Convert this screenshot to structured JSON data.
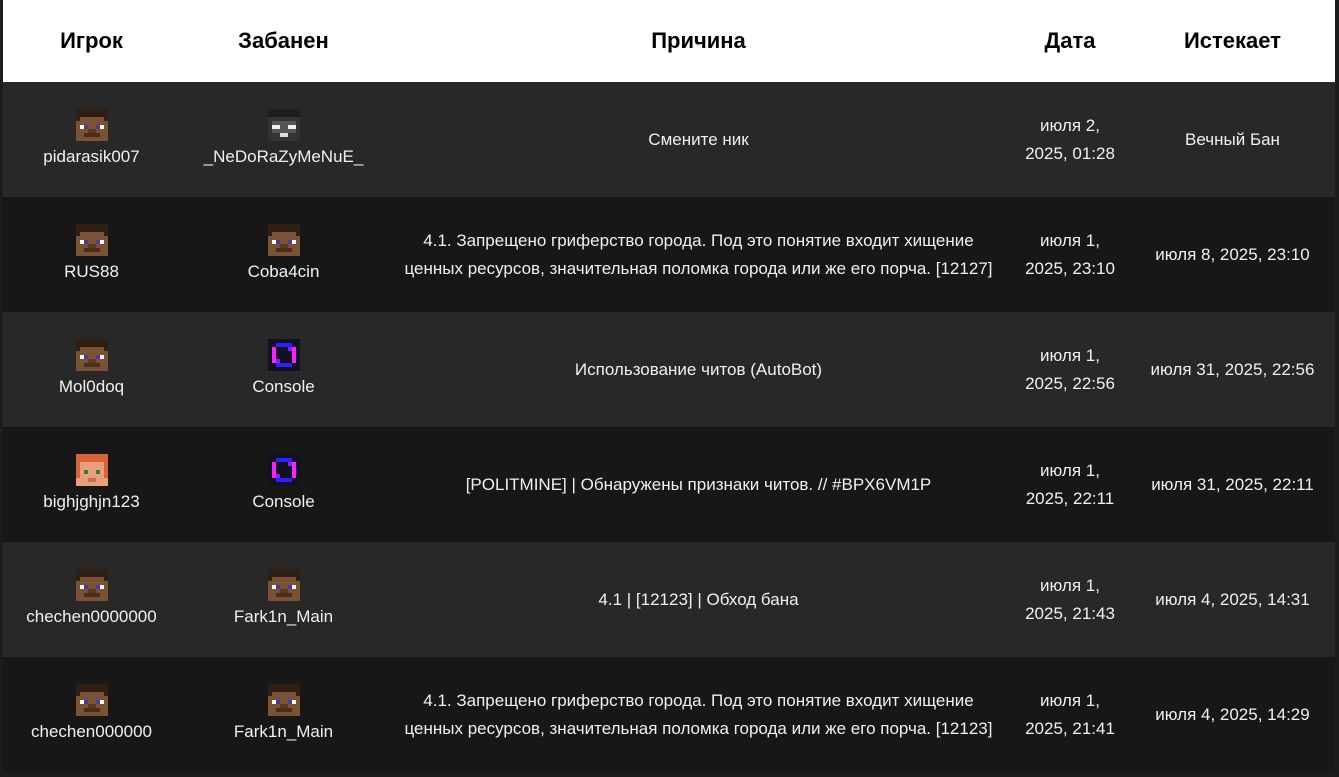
{
  "headers": {
    "player": "Игрок",
    "banned_by": "Забанен",
    "reason": "Причина",
    "date": "Дата",
    "expires": "Истекает"
  },
  "rows": [
    {
      "player": "pidarasik007",
      "player_avatar": "steve",
      "banned_by": "_NeDoRaZyMeNuE_",
      "banned_by_avatar": "gray",
      "reason": "Смените ник",
      "date": "июля 2, 2025, 01:28",
      "expires": "Вечный Бан"
    },
    {
      "player": "RUS88",
      "player_avatar": "steve",
      "banned_by": "Coba4cin",
      "banned_by_avatar": "steve",
      "reason": "4.1. Запрещено гриферство города. Под это понятие входит хищение ценных ресурсов, значительная поломка города или же его порча. [12127]",
      "date": "июля 1, 2025, 23:10",
      "expires": "июля 8, 2025, 23:10"
    },
    {
      "player": "Mol0doq",
      "player_avatar": "steve",
      "banned_by": "Console",
      "banned_by_avatar": "console",
      "reason": "Использование читов (AutoBot)",
      "date": "июля 1, 2025, 22:56",
      "expires": "июля 31, 2025, 22:56"
    },
    {
      "player": "bighjghjn123",
      "player_avatar": "alex",
      "banned_by": "Console",
      "banned_by_avatar": "console",
      "reason": "[POLITMINE] | Обнаружены признаки читов. // #BPX6VM1P",
      "date": "июля 1, 2025, 22:11",
      "expires": "июля 31, 2025, 22:11"
    },
    {
      "player": "chechen0000000",
      "player_avatar": "steve",
      "banned_by": "Fark1n_Main",
      "banned_by_avatar": "steve",
      "reason": "4.1 | [12123] | Обход бана",
      "date": "июля 1, 2025, 21:43",
      "expires": "июля 4, 2025, 14:31"
    },
    {
      "player": "chechen000000",
      "player_avatar": "steve",
      "banned_by": "Fark1n_Main",
      "banned_by_avatar": "steve",
      "reason": "4.1. Запрещено гриферство города. Под это понятие входит хищение ценных ресурсов, значительная поломка города или же его порча. [12123]",
      "date": "июля 1, 2025, 21:41",
      "expires": "июля 4, 2025, 14:29"
    }
  ]
}
